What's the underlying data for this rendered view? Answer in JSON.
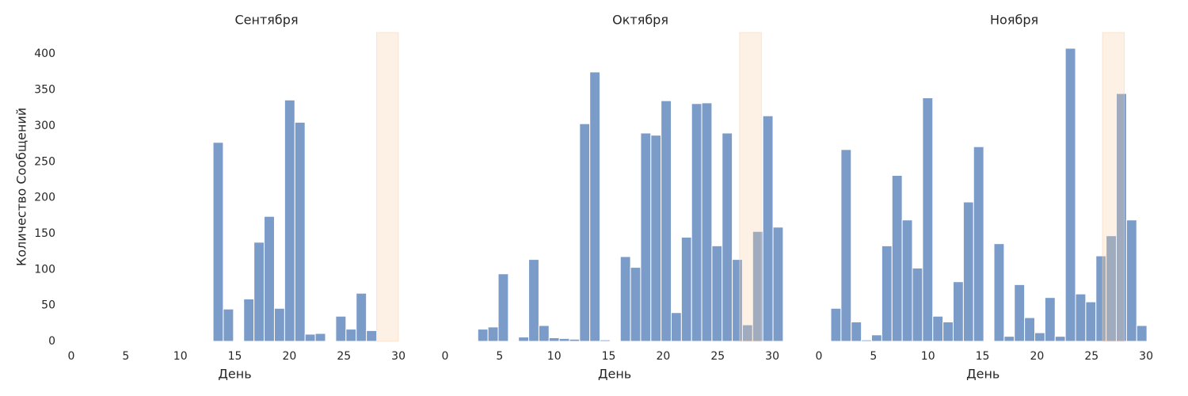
{
  "chart_data": [
    {
      "type": "histogram",
      "title": "Сентября",
      "xlabel": "День",
      "ylabel": "Количество Сообщений",
      "bins": [
        13,
        13.9375,
        14.875,
        15.8125,
        16.75,
        17.6875,
        18.625,
        19.5625,
        20.5,
        21.4375,
        22.375,
        23.3125,
        24.25,
        25.1875,
        26.125,
        27.0625,
        28
      ],
      "values": [
        277,
        45,
        0,
        59,
        138,
        174,
        46,
        336,
        305,
        10,
        11,
        0,
        35,
        17,
        67,
        15
      ],
      "color": "#7b9bc8",
      "highlight": [
        28,
        30
      ],
      "highlight_color": "#fad2aa",
      "xlim": [
        0,
        30
      ],
      "xticks": [
        0,
        5,
        10,
        15,
        20,
        25,
        30
      ],
      "ylim": [
        0,
        430
      ],
      "yticks": [
        0,
        50,
        100,
        150,
        200,
        250,
        300,
        350,
        400
      ]
    },
    {
      "type": "histogram",
      "title": "Октября",
      "xlabel": "День",
      "bins": [
        3,
        3.933,
        4.867,
        5.8,
        6.733,
        7.667,
        8.6,
        9.533,
        10.467,
        11.4,
        12.333,
        13.267,
        14.2,
        15.133,
        16.067,
        17,
        17.933,
        18.867,
        19.8,
        20.733,
        21.667,
        22.6,
        23.533,
        24.467,
        25.4,
        26.333,
        27.267,
        28.2,
        29.133,
        30.067,
        31
      ],
      "values": [
        17,
        20,
        94,
        0,
        6,
        114,
        22,
        5,
        4,
        3,
        303,
        375,
        2,
        0,
        118,
        103,
        290,
        287,
        335,
        40,
        145,
        331,
        332,
        133,
        290,
        114,
        23,
        153,
        314,
        159
      ],
      "color": "#7b9bc8",
      "highlight": [
        27,
        29
      ],
      "highlight_color": "#fad2aa",
      "xlim": [
        0,
        31.1
      ],
      "xticks": [
        0,
        5,
        10,
        15,
        20,
        25,
        30
      ],
      "ylim": [
        0,
        430
      ]
    },
    {
      "type": "histogram",
      "title": "Ноября",
      "xlabel": "День",
      "bins": [
        1.09,
        2.025,
        2.96,
        3.895,
        4.83,
        5.765,
        6.7,
        7.635,
        8.57,
        9.505,
        10.44,
        11.375,
        12.31,
        13.245,
        14.18,
        15.115,
        16.05,
        16.985,
        17.92,
        18.855,
        19.79,
        20.725,
        21.66,
        22.595,
        23.53,
        24.465,
        25.4,
        26.335,
        27.27,
        28.205,
        29.14,
        30.075
      ],
      "values": [
        46,
        267,
        27,
        2,
        9,
        133,
        231,
        169,
        102,
        339,
        35,
        27,
        83,
        194,
        271,
        0,
        136,
        7,
        79,
        33,
        12,
        61,
        7,
        408,
        66,
        55,
        119,
        147,
        345,
        169,
        22
      ],
      "color": "#7b9bc8",
      "highlight": [
        26,
        28
      ],
      "highlight_color": "#fad2aa",
      "xlim": [
        0,
        30.1
      ],
      "xticks": [
        0,
        5,
        10,
        15,
        20,
        25,
        30
      ],
      "ylim": [
        0,
        430
      ]
    }
  ]
}
